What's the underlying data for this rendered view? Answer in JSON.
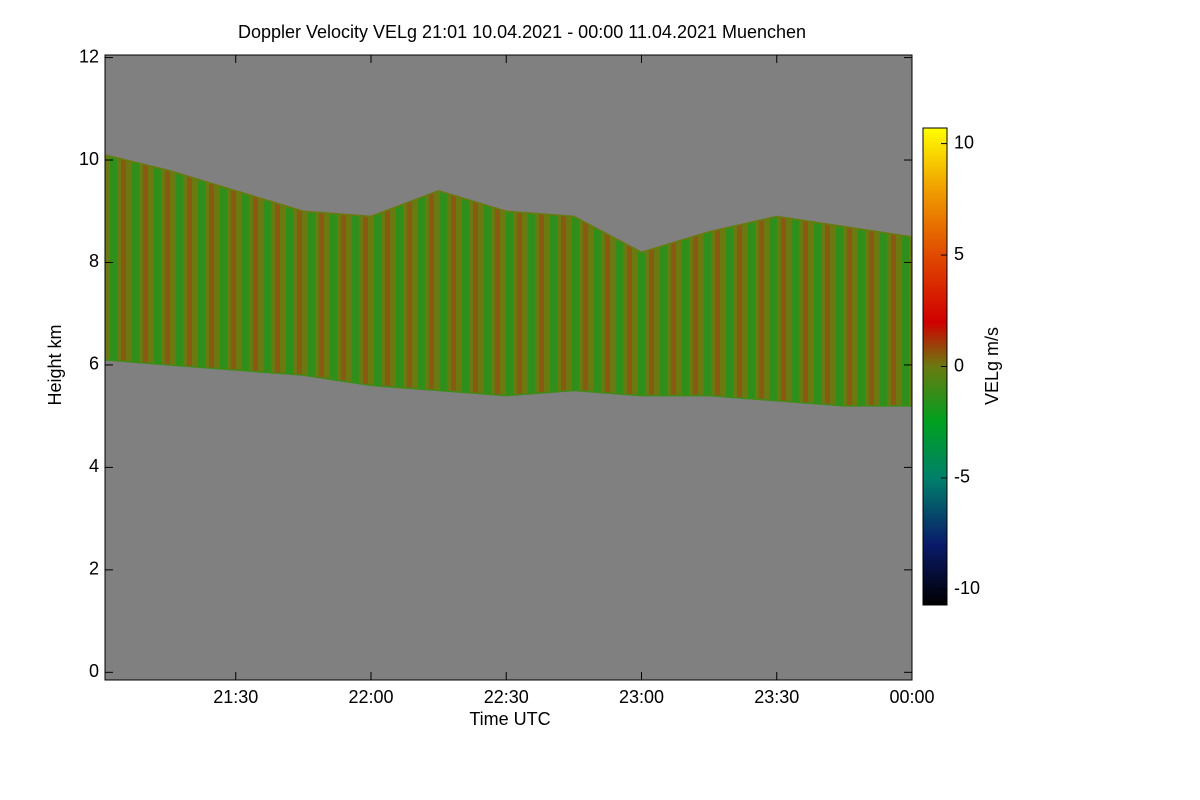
{
  "chart_data": {
    "type": "time-height",
    "title": "Doppler Velocity VELg   21:01 10.04.2021 - 00:00 11.04.2021 Muenchen",
    "x_label": "Time UTC",
    "y_label": "Height km",
    "colorbar_label": "VELg m/s",
    "xlim": [
      21.0167,
      24.0
    ],
    "xticks": [
      {
        "value": 21.5,
        "label": "21:30"
      },
      {
        "value": 22.0,
        "label": "22:00"
      },
      {
        "value": 22.5,
        "label": "22:30"
      },
      {
        "value": 23.0,
        "label": "23:00"
      },
      {
        "value": 23.5,
        "label": "23:30"
      },
      {
        "value": 24.0,
        "label": "00:00"
      }
    ],
    "ylim": [
      -0.15,
      12.05
    ],
    "yticks": [
      0,
      2,
      4,
      6,
      8,
      10,
      12
    ],
    "clim": [
      -10.7,
      10.7
    ],
    "cticks": [
      10,
      5,
      0,
      -5,
      -10
    ],
    "colormap": [
      {
        "value": -10.7,
        "color": "#000000"
      },
      {
        "value": -8,
        "color": "#0a1a6a"
      },
      {
        "value": -5,
        "color": "#00806a"
      },
      {
        "value": -2.5,
        "color": "#00a020"
      },
      {
        "value": 0,
        "color": "#6a7a10"
      },
      {
        "value": 2,
        "color": "#d00000"
      },
      {
        "value": 5,
        "color": "#e04a00"
      },
      {
        "value": 8,
        "color": "#f0a000"
      },
      {
        "value": 10.7,
        "color": "#ffff00"
      }
    ],
    "background_color": "#808080",
    "x": [
      21.0167,
      21.25,
      21.5,
      21.75,
      22.0,
      22.25,
      22.5,
      22.75,
      23.0,
      23.25,
      23.5,
      23.75,
      24.0
    ],
    "top": [
      10.1,
      9.8,
      9.4,
      9.0,
      8.9,
      9.4,
      9.0,
      8.9,
      8.2,
      8.6,
      8.9,
      8.7,
      8.5
    ],
    "base": [
      6.1,
      6.0,
      5.9,
      5.8,
      5.6,
      5.5,
      5.4,
      5.5,
      5.4,
      5.4,
      5.3,
      5.2,
      5.2
    ]
  }
}
